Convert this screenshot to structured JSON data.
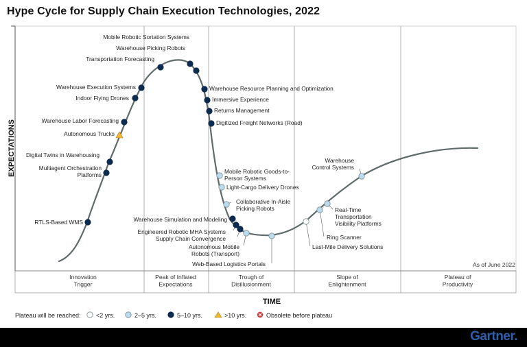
{
  "title": "Hype Cycle for Supply Chain Execution Technologies, 2022",
  "y_axis_label": "EXPECTATIONS",
  "x_axis_label": "TIME",
  "as_of": "As of June 2022",
  "phases": [
    {
      "lines": [
        "Innovation",
        "Trigger"
      ]
    },
    {
      "lines": [
        "Peak of Inflated",
        "Expectations"
      ]
    },
    {
      "lines": [
        "Trough of",
        "Disillusionment"
      ]
    },
    {
      "lines": [
        "Slope of",
        "Enlightenment"
      ]
    },
    {
      "lines": [
        "Plateau of",
        "Productivity"
      ]
    }
  ],
  "legend": {
    "prefix": "Plateau will be reached:",
    "items": [
      {
        "key": "lt2",
        "label": "<2 yrs."
      },
      {
        "key": "2to5",
        "label": "2–5 yrs."
      },
      {
        "key": "5to10",
        "label": "5–10 yrs."
      },
      {
        "key": "gt10",
        "label": ">10 yrs."
      },
      {
        "key": "obsolete",
        "label": "Obsolete before plateau"
      }
    ]
  },
  "colors": {
    "lt2": "#ffffff",
    "2to5": "#b9dcef",
    "5to10": "#0d2a4f",
    "gt10": "#f2b632",
    "obsolete": "#d43a3a",
    "curve": "#5f6b6b",
    "brand": "#2f5fa8"
  },
  "technologies": [
    {
      "lines": [
        "Mobile Robotic Sortation Systems"
      ],
      "status": "5to10"
    },
    {
      "lines": [
        "Warehouse Picking Robots"
      ],
      "status": "5to10"
    },
    {
      "lines": [
        "Transportation Forecasting"
      ],
      "status": "5to10"
    },
    {
      "lines": [
        "Warehouse Execution Systems"
      ],
      "status": "5to10"
    },
    {
      "lines": [
        "Indoor Flying Drones"
      ],
      "status": "5to10"
    },
    {
      "lines": [
        "Warehouse Labor Forecasting"
      ],
      "status": "5to10"
    },
    {
      "lines": [
        "Autonomous Trucks"
      ],
      "status": "gt10"
    },
    {
      "lines": [
        "Digital Twins in Warehousing"
      ],
      "status": "5to10"
    },
    {
      "lines": [
        "Multiagent Orchestration",
        "Platforms"
      ],
      "status": "5to10"
    },
    {
      "lines": [
        "RTLS-Based WMS"
      ],
      "status": "5to10"
    },
    {
      "lines": [
        "Warehouse Resource Planning and Optimization"
      ],
      "status": "5to10"
    },
    {
      "lines": [
        "Immersive Experience"
      ],
      "status": "5to10"
    },
    {
      "lines": [
        "Returns Management"
      ],
      "status": "5to10"
    },
    {
      "lines": [
        "Digitized Freight Networks (Road)"
      ],
      "status": "5to10"
    },
    {
      "lines": [
        "Mobile Robotic Goods-to-",
        "Person Systems"
      ],
      "status": "2to5"
    },
    {
      "lines": [
        "Light-Cargo Delivery Drones"
      ],
      "status": "2to5"
    },
    {
      "lines": [
        "Collaborative In-Aisle",
        "Picking Robots"
      ],
      "status": "2to5"
    },
    {
      "lines": [
        "Warehouse Simulation and Modeling"
      ],
      "status": "5to10"
    },
    {
      "lines": [
        "Engineered Robotic MHA Systems"
      ],
      "status": "5to10"
    },
    {
      "lines": [
        "Supply Chain Convergence"
      ],
      "status": "5to10"
    },
    {
      "lines": [
        "Autonomous Mobile",
        "Robots (Transport)"
      ],
      "status": "2to5"
    },
    {
      "lines": [
        "Web-Based Logistics Portals"
      ],
      "status": "2to5"
    },
    {
      "lines": [
        "Warehouse",
        "Control Systems"
      ],
      "status": "2to5"
    },
    {
      "lines": [
        "Real-Time",
        "Transportation",
        "Visibility Platforms"
      ],
      "status": "2to5"
    },
    {
      "lines": [
        "Ring Scanner"
      ],
      "status": "2to5"
    },
    {
      "lines": [
        "Last-Mile Delivery Solutions"
      ],
      "status": "lt2"
    }
  ],
  "brand": "Gartner."
}
